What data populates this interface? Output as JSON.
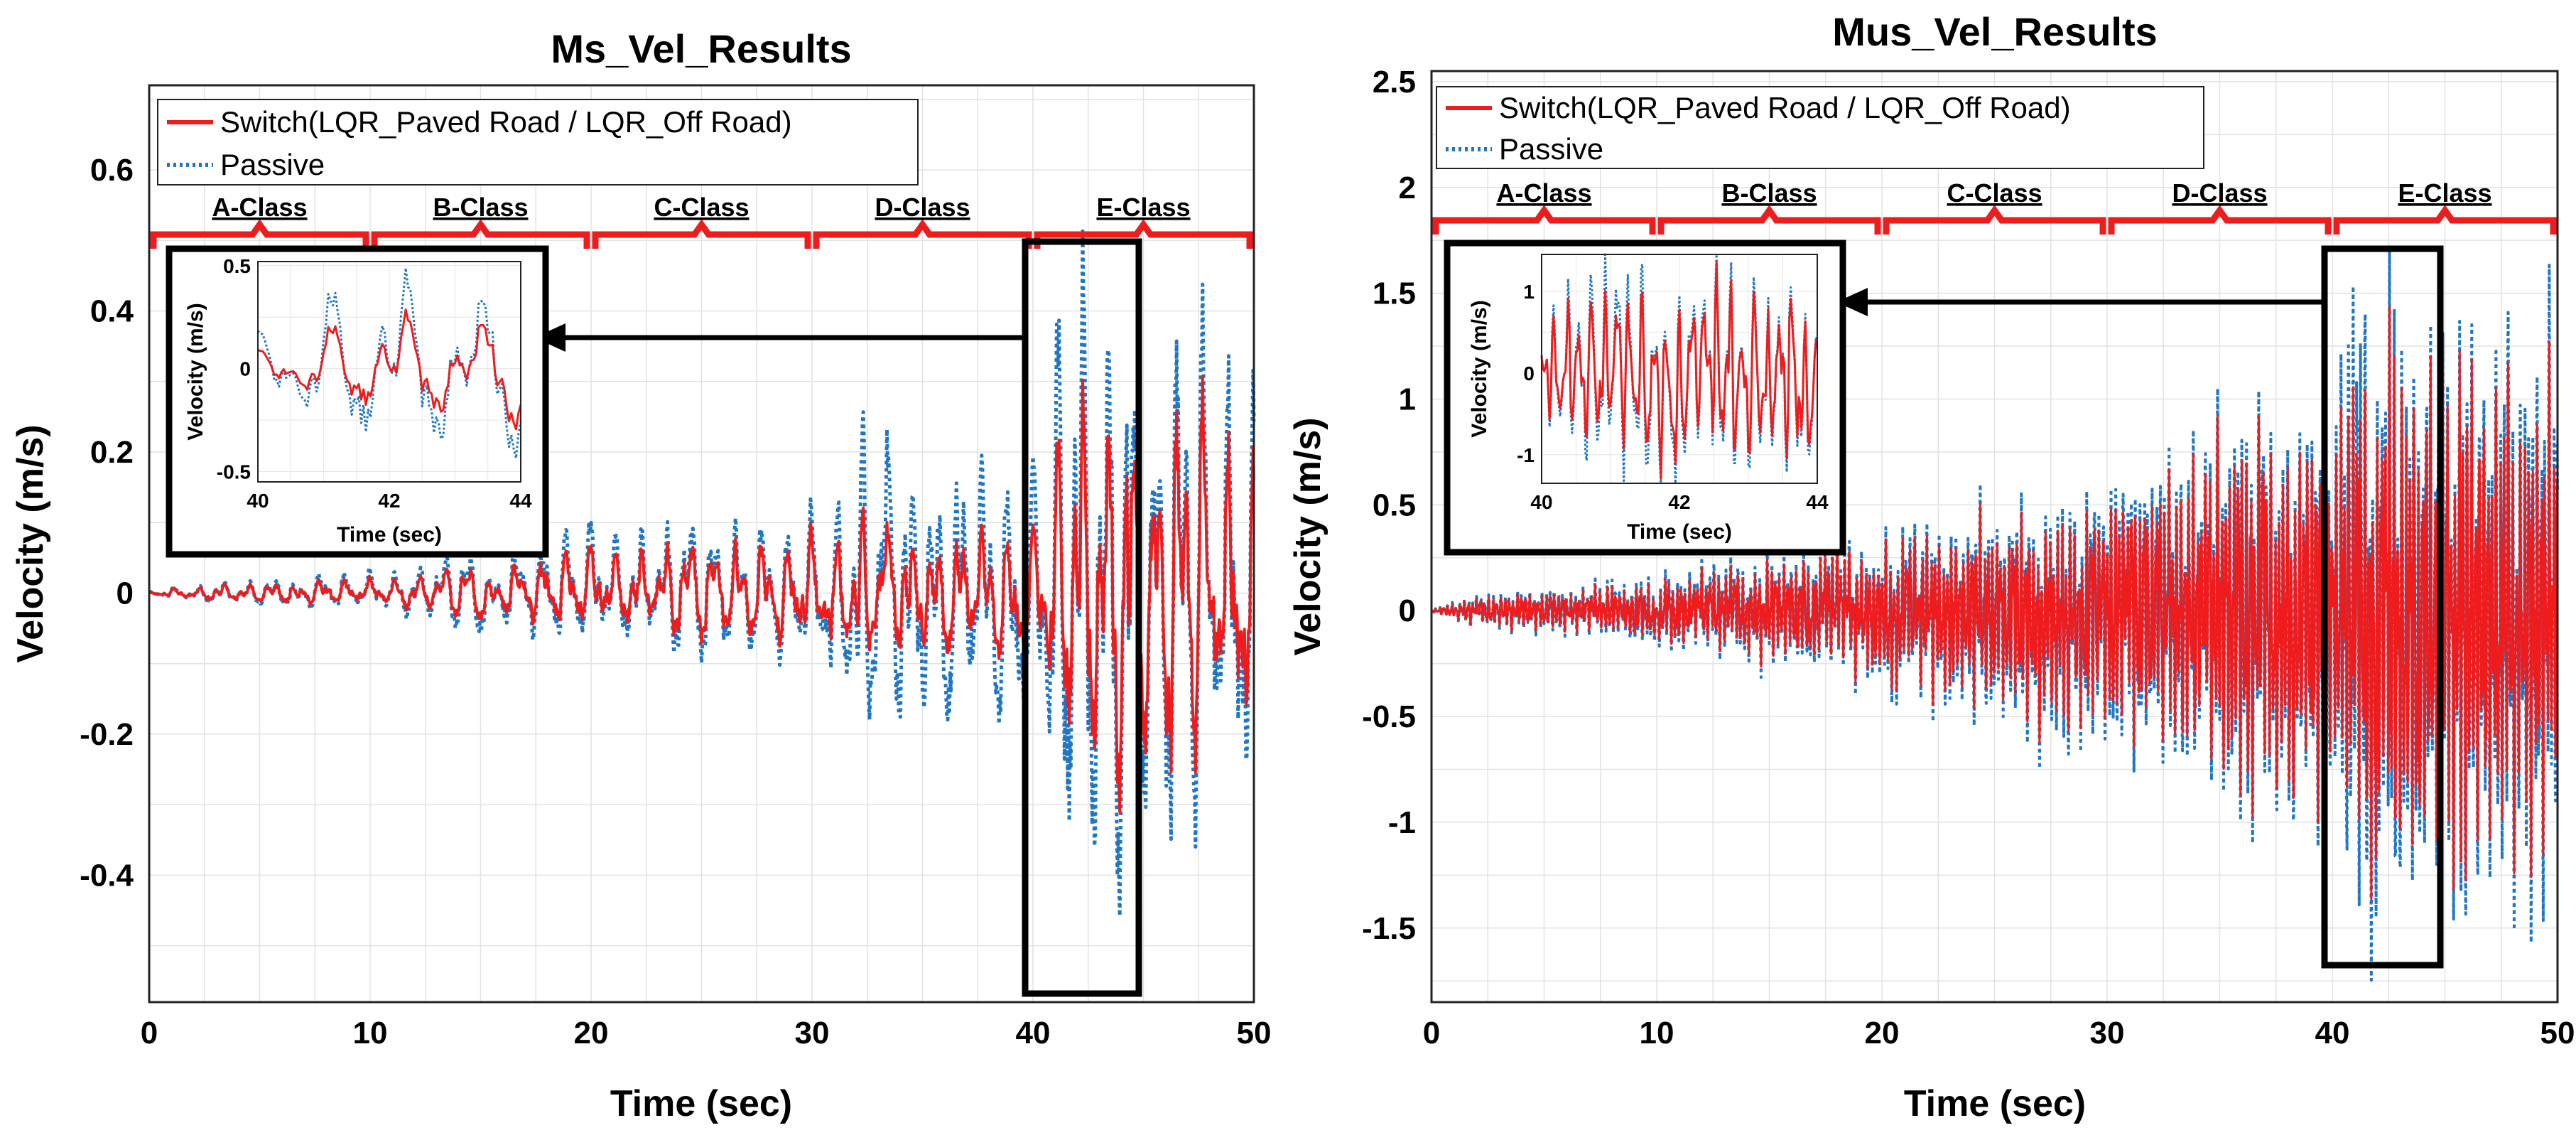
{
  "charts": [
    {
      "title": "Ms_Vel_Results",
      "xlabel": "Time (sec)",
      "ylabel": "Velocity (m/s)",
      "xlim": [
        0,
        50
      ],
      "ylim": [
        -0.58,
        0.72
      ],
      "xticks": [
        0,
        10,
        20,
        30,
        40,
        50
      ],
      "yticks": [
        -0.4,
        -0.2,
        0,
        0.2,
        0.4,
        0.6
      ],
      "ytick_labels": [
        "-0.4",
        "-0.2",
        "0",
        "0.2",
        "0.4",
        "0.6"
      ],
      "legend": [
        "Switch(LQR_Paved Road / LQR_Off Road)",
        "Passive"
      ],
      "classes": [
        "A-Class",
        "B-Class",
        "C-Class",
        "D-Class",
        "E-Class"
      ],
      "inset": {
        "xlim": [
          40,
          44
        ],
        "ylim": [
          -0.55,
          0.52
        ],
        "xticks": [
          40,
          42,
          44
        ],
        "yticks": [
          -0.5,
          0,
          0.5
        ],
        "ytick_labels": [
          "-0.5",
          "0",
          "0.5"
        ],
        "xlabel": "Time (sec)",
        "ylabel": "Velocity (m/s)"
      }
    },
    {
      "title": "Mus_Vel_Results",
      "xlabel": "Time (sec)",
      "ylabel": "Velocity (m/s)",
      "xlim": [
        0,
        50
      ],
      "ylim": [
        -1.85,
        2.55
      ],
      "xticks": [
        0,
        10,
        20,
        30,
        40,
        50
      ],
      "yticks": [
        -1.5,
        -1,
        -0.5,
        0,
        0.5,
        1,
        1.5,
        2,
        2.5
      ],
      "ytick_labels": [
        "-1.5",
        "-1",
        "-0.5",
        "0",
        "0.5",
        "1",
        "1.5",
        "2",
        "2.5"
      ],
      "legend": [
        "Switch(LQR_Paved Road / LQR_Off Road)",
        "Passive"
      ],
      "classes": [
        "A-Class",
        "B-Class",
        "C-Class",
        "D-Class",
        "E-Class"
      ],
      "inset": {
        "xlim": [
          40,
          44
        ],
        "ylim": [
          -1.35,
          1.45
        ],
        "xticks": [
          40,
          42,
          44
        ],
        "yticks": [
          -1,
          0,
          1
        ],
        "ytick_labels": [
          "-1",
          "0",
          "1"
        ],
        "xlabel": "Time (sec)",
        "ylabel": "Velocity (m/s)"
      }
    }
  ],
  "chart_data": [
    {
      "type": "line",
      "title": "Ms_Vel_Results",
      "xlabel": "Time (sec)",
      "ylabel": "Velocity (m/s)",
      "xlim": [
        0,
        50
      ],
      "ylim": [
        -0.58,
        0.72
      ],
      "grid": true,
      "legend_position": "top-left",
      "series": [
        {
          "name": "Switch(LQR_Paved Road / LQR_Off Road)",
          "style": "solid",
          "color": "#ee1c1c",
          "envelope": {
            "x": [
              0,
              2,
              10,
              20,
              30,
              38,
              40,
              42,
              45,
              50
            ],
            "amplitude": [
              0.002,
              0.01,
              0.02,
              0.06,
              0.09,
              0.1,
              0.1,
              0.3,
              0.3,
              0.25
            ]
          }
        },
        {
          "name": "Passive",
          "style": "dotted",
          "color": "#1f77c4",
          "envelope": {
            "x": [
              0,
              2,
              10,
              20,
              30,
              33,
              38,
              40,
              42,
              45,
              50
            ],
            "amplitude": [
              0.002,
              0.012,
              0.03,
              0.09,
              0.12,
              0.22,
              0.2,
              0.2,
              0.52,
              0.4,
              0.38
            ]
          }
        }
      ]
    },
    {
      "type": "line",
      "title": "Mus_Vel_Results",
      "xlabel": "Time (sec)",
      "ylabel": "Velocity (m/s)",
      "xlim": [
        0,
        50
      ],
      "ylim": [
        -1.85,
        2.55
      ],
      "grid": true,
      "legend_position": "top-left",
      "series": [
        {
          "name": "Switch(LQR_Paved Road / LQR_Off Road)",
          "style": "solid",
          "color": "#ee1c1c",
          "envelope": {
            "x": [
              0,
              2,
              10,
              20,
              30,
              40,
              42,
              45,
              50
            ],
            "amplitude": [
              0.005,
              0.06,
              0.12,
              0.3,
              0.5,
              0.9,
              1.2,
              1.1,
              1.0
            ]
          }
        },
        {
          "name": "Passive",
          "style": "dotted",
          "color": "#1f77c4",
          "envelope": {
            "x": [
              0,
              2,
              10,
              20,
              30,
              40,
              41,
              45,
              50
            ],
            "amplitude": [
              0.005,
              0.07,
              0.15,
              0.35,
              0.6,
              1.0,
              1.55,
              1.2,
              1.3
            ]
          }
        }
      ]
    }
  ]
}
